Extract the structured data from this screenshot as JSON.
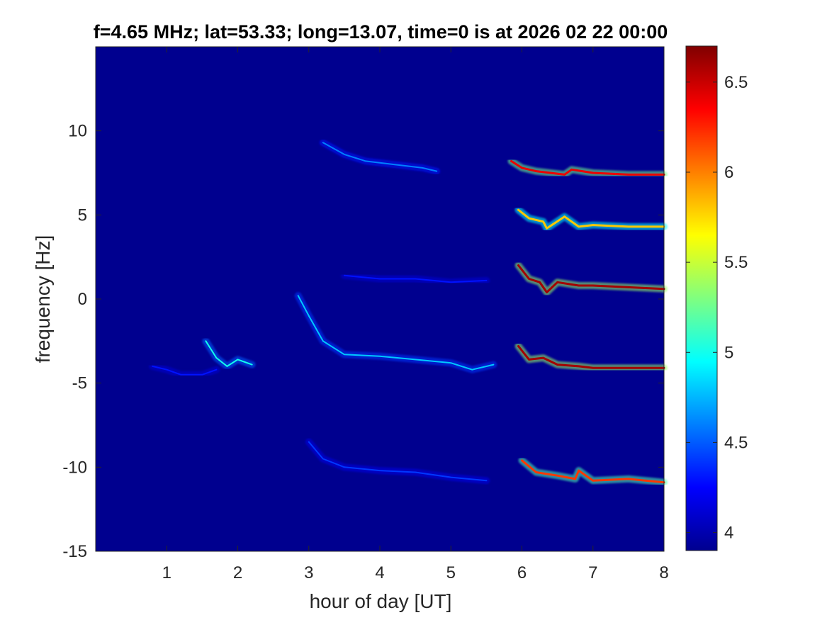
{
  "chart_data": {
    "type": "heatmap",
    "title": "f=4.65 MHz;  lat=53.33; long=13.07, time=0 is at 2026 02 22 00:00",
    "xlabel": "hour of day [UT]",
    "ylabel": "frequency [Hz]",
    "xlim": [
      0,
      8
    ],
    "ylim": [
      -15,
      15
    ],
    "x_ticks": [
      "1",
      "2",
      "3",
      "4",
      "5",
      "6",
      "7",
      "8"
    ],
    "y_ticks": [
      "-15",
      "-10",
      "-5",
      "0",
      "5",
      "10"
    ],
    "colorbar": {
      "range": [
        3.9,
        6.7
      ],
      "ticks": [
        "4",
        "4.5",
        "5",
        "5.5",
        "6",
        "6.5"
      ],
      "colormap": "jet"
    },
    "background_color": "#00008f",
    "traces": [
      {
        "x": [
          5.85,
          6.0,
          6.2,
          6.4,
          6.6,
          6.7,
          7.0,
          7.5,
          8.0
        ],
        "y": [
          8.2,
          7.8,
          7.6,
          7.5,
          7.4,
          7.7,
          7.5,
          7.4,
          7.4
        ],
        "peak": 6.4
      },
      {
        "x": [
          5.95,
          6.1,
          6.3,
          6.35,
          6.6,
          6.8,
          7.0,
          7.5,
          8.0
        ],
        "y": [
          5.3,
          4.8,
          4.6,
          4.2,
          4.9,
          4.3,
          4.4,
          4.3,
          4.3
        ],
        "peak": 5.8
      },
      {
        "x": [
          5.95,
          6.1,
          6.25,
          6.35,
          6.5,
          6.8,
          7.0,
          7.5,
          8.0
        ],
        "y": [
          2.0,
          1.2,
          1.0,
          0.4,
          1.0,
          0.8,
          0.8,
          0.7,
          0.6
        ],
        "peak": 6.6
      },
      {
        "x": [
          5.95,
          6.1,
          6.3,
          6.5,
          6.8,
          7.0,
          7.5,
          8.0
        ],
        "y": [
          -2.8,
          -3.6,
          -3.5,
          -3.9,
          -4.0,
          -4.1,
          -4.1,
          -4.1
        ],
        "peak": 6.6
      },
      {
        "x": [
          6.0,
          6.2,
          6.5,
          6.75,
          6.8,
          7.0,
          7.5,
          8.0
        ],
        "y": [
          -9.6,
          -10.3,
          -10.5,
          -10.7,
          -10.2,
          -10.8,
          -10.7,
          -10.9
        ],
        "peak": 6.2
      },
      {
        "x": [
          3.2,
          3.5,
          3.8,
          4.2,
          4.6,
          4.8
        ],
        "y": [
          9.3,
          8.6,
          8.2,
          8.0,
          7.8,
          7.6
        ],
        "peak": 4.6
      },
      {
        "x": [
          2.85,
          3.0,
          3.2,
          3.5,
          4.0,
          4.5,
          5.0,
          5.3,
          5.6
        ],
        "y": [
          0.2,
          -1.0,
          -2.5,
          -3.3,
          -3.4,
          -3.6,
          -3.8,
          -4.2,
          -3.9
        ],
        "peak": 4.8
      },
      {
        "x": [
          1.55,
          1.7,
          1.85,
          2.0,
          2.2
        ],
        "y": [
          -2.5,
          -3.5,
          -4.0,
          -3.6,
          -3.9
        ],
        "peak": 5.0
      },
      {
        "x": [
          3.0,
          3.2,
          3.5,
          4.0,
          4.5,
          5.0,
          5.5
        ],
        "y": [
          -8.5,
          -9.5,
          -10.0,
          -10.2,
          -10.3,
          -10.6,
          -10.8
        ],
        "peak": 4.4
      },
      {
        "x": [
          3.5,
          4.0,
          4.5,
          5.0,
          5.5
        ],
        "y": [
          1.4,
          1.2,
          1.2,
          1.0,
          1.1
        ],
        "peak": 4.3
      },
      {
        "x": [
          0.8,
          1.0,
          1.2,
          1.5,
          1.7
        ],
        "y": [
          -4.0,
          -4.2,
          -4.5,
          -4.5,
          -4.2
        ],
        "peak": 4.3
      }
    ]
  }
}
